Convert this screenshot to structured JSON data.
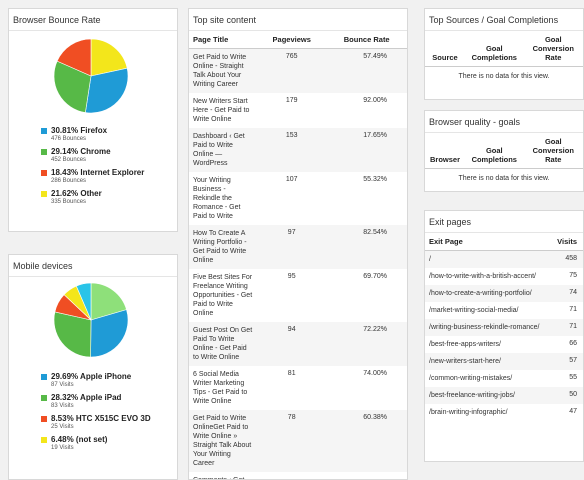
{
  "bounce": {
    "title": "Browser Bounce Rate",
    "items": [
      {
        "pct": "30.81% Firefox",
        "sub": "476 Bounces",
        "value": 30.81,
        "color": "#1f9bd6"
      },
      {
        "pct": "29.14% Chrome",
        "sub": "452 Bounces",
        "value": 29.14,
        "color": "#57b947"
      },
      {
        "pct": "18.43% Internet Explorer",
        "sub": "286 Bounces",
        "value": 18.43,
        "color": "#f04e23"
      },
      {
        "pct": "21.62% Other",
        "sub": "335 Bounces",
        "value": 21.62,
        "color": "#f3e61b"
      }
    ]
  },
  "mobile": {
    "title": "Mobile devices",
    "items": [
      {
        "pct": "29.69% Apple iPhone",
        "sub": "87 Visits",
        "value": 29.69,
        "color": "#1f9bd6"
      },
      {
        "pct": "28.32% Apple iPad",
        "sub": "83 Visits",
        "value": 28.32,
        "color": "#57b947"
      },
      {
        "pct": "8.53% HTC X515C EVO 3D",
        "sub": "25 Visits",
        "value": 8.53,
        "color": "#f04e23"
      },
      {
        "pct": "6.48% (not set)",
        "sub": "19 Visits",
        "value": 6.48,
        "color": "#f3e61b"
      }
    ],
    "other_slices": [
      {
        "value": 6.5,
        "color": "#29c4e8"
      },
      {
        "value": 20.48,
        "color": "#8ee07a"
      }
    ]
  },
  "content": {
    "title": "Top site content",
    "headers": [
      "Page Title",
      "Pageviews",
      "Bounce Rate"
    ],
    "rows": [
      {
        "title": "Get Paid to Write Online - Straight Talk About Your Writing Career",
        "views": "765",
        "rate": "57.49%"
      },
      {
        "title": "New Writers Start Here - Get Paid to Write Online",
        "views": "179",
        "rate": "92.00%"
      },
      {
        "title": "Dashboard ‹ Get Paid to Write Online — WordPress",
        "views": "153",
        "rate": "17.65%"
      },
      {
        "title": "Your Writing Business - Rekindle the Romance - Get Paid to Write",
        "views": "107",
        "rate": "55.32%"
      },
      {
        "title": "How To Create A Writing Portfolio - Get Paid to Write Online",
        "views": "97",
        "rate": "82.54%"
      },
      {
        "title": "Five Best Sites For Freelance Writing Opportunities - Get Paid to Write Online",
        "views": "95",
        "rate": "69.70%"
      },
      {
        "title": "Guest Post On Get Paid To Write Online - Get Paid to Write Online",
        "views": "94",
        "rate": "72.22%"
      },
      {
        "title": "6 Social Media Writer Marketing Tips - Get Paid to Write Online",
        "views": "81",
        "rate": "74.00%"
      },
      {
        "title": "Get Paid to Write OnlineGet Paid to Write Online » Straight Talk About Your Writing Career",
        "views": "78",
        "rate": "60.38%"
      },
      {
        "title": "Comments ‹ Get",
        "views": "",
        "rate": ""
      }
    ]
  },
  "sources": {
    "title": "Top Sources / Goal Completions",
    "headers": [
      "Source",
      "Goal Completions",
      "Goal Conversion Rate"
    ],
    "nodata": "There is no data for this view."
  },
  "quality": {
    "title": "Browser quality - goals",
    "headers": [
      "Browser",
      "Goal Completions",
      "Goal Conversion Rate"
    ],
    "nodata": "There is no data for this view."
  },
  "exit": {
    "title": "Exit pages",
    "headers": [
      "Exit Page",
      "Visits"
    ],
    "rows": [
      {
        "page": "/",
        "visits": "458"
      },
      {
        "page": "/how-to-write-with-a-british-accent/",
        "visits": "75"
      },
      {
        "page": "/how-to-create-a-writing-portfolio/",
        "visits": "74"
      },
      {
        "page": "/market-writing-social-media/",
        "visits": "71"
      },
      {
        "page": "/writing-business-rekindle-romance/",
        "visits": "71"
      },
      {
        "page": "/best-free-apps-writers/",
        "visits": "66"
      },
      {
        "page": "/new-writers-start-here/",
        "visits": "57"
      },
      {
        "page": "/common-writing-mistakes/",
        "visits": "55"
      },
      {
        "page": "/best-freelance-writing-jobs/",
        "visits": "50"
      },
      {
        "page": "/brain-writing-infographic/",
        "visits": "47"
      }
    ]
  }
}
